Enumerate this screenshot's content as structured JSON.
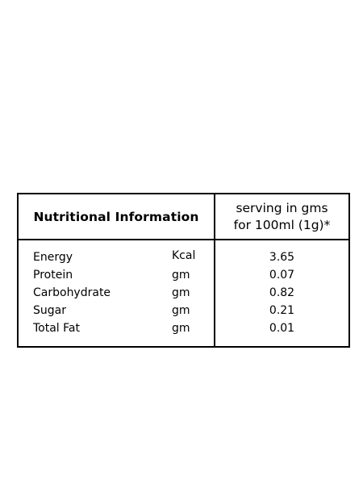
{
  "table": {
    "title": "Nutritional Information",
    "serving_line1": "serving in gms",
    "serving_line2": "for 100ml (1g)*",
    "rows": [
      {
        "name": "Energy",
        "unit": "Kcal",
        "value": "3.65"
      },
      {
        "name": "Protein",
        "unit": "gm",
        "value": "0.07"
      },
      {
        "name": "Carbohydrate",
        "unit": "gm",
        "value": "0.82"
      },
      {
        "name": "Sugar",
        "unit": "gm",
        "value": "0.21"
      },
      {
        "name": "Total Fat",
        "unit": "gm",
        "value": "0.01"
      }
    ]
  }
}
